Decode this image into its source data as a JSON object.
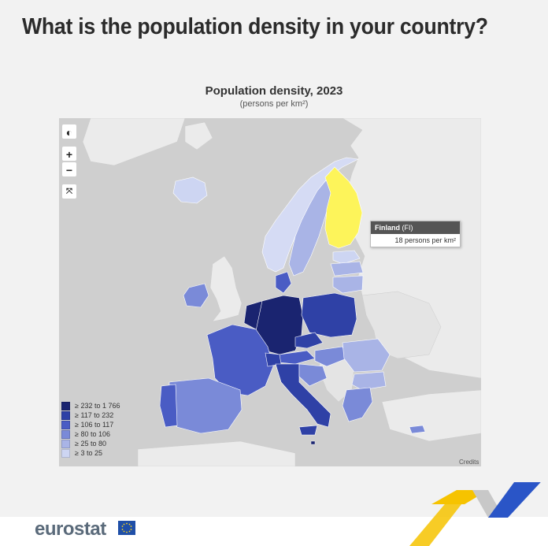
{
  "headline": "What is the population density in your country?",
  "map": {
    "title": "Population density, 2023",
    "subtitle": "(persons per km²)",
    "credits": "Credits"
  },
  "controls": {
    "zoom_in": "+",
    "zoom_out": "−"
  },
  "legend": [
    {
      "label": "≥ 232 to 1 766",
      "color": "#1a2470"
    },
    {
      "label": "≥ 117 to 232",
      "color": "#2f41a6"
    },
    {
      "label": "≥ 106 to 117",
      "color": "#4a5cc4"
    },
    {
      "label": "≥ 80 to 106",
      "color": "#7a8ad8"
    },
    {
      "label": "≥ 25 to 80",
      "color": "#a9b4e6"
    },
    {
      "label": "≥ 3 to 25",
      "color": "#cdd5f2"
    }
  ],
  "tooltip": {
    "country": "Finland",
    "code": "(FI)",
    "value": "18 persons per km²"
  },
  "colors": {
    "highlight": "#fdf45a",
    "land_non_eu": "#ebebeb",
    "sea": "#d0d0d0"
  },
  "brand": {
    "name": "eurostat"
  }
}
